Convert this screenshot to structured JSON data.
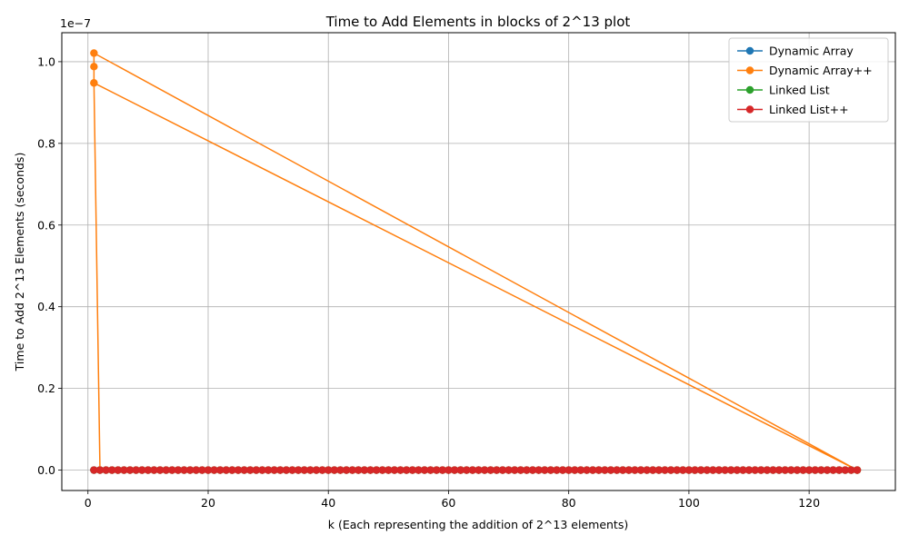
{
  "chart_data": {
    "type": "line",
    "title": "Time to Add Elements in blocks of 2^13 plot",
    "xlabel": "k (Each representing the addition of 2^13 elements)",
    "ylabel": "Time to Add 2^13 Elements (seconds)",
    "y_offset_label": "1e−7",
    "y_scale": 1e-07,
    "xlim": [
      -4.35,
      134.35
    ],
    "ylim": [
      -5e-09,
      1.071e-07
    ],
    "x_ticks": [
      0,
      20,
      40,
      60,
      80,
      100,
      120
    ],
    "y_ticks": [
      0.0,
      2e-08,
      4e-08,
      6e-08,
      8e-08,
      1e-07
    ],
    "y_tick_labels": [
      "0.0",
      "0.2",
      "0.4",
      "0.6",
      "0.8",
      "1.0"
    ],
    "grid": true,
    "legend_position": "top-right",
    "x_range": {
      "start": 1,
      "end": 128
    },
    "series": [
      {
        "name": "Dynamic Array",
        "color": "#1f77b4",
        "pattern": "zeros",
        "values": []
      },
      {
        "name": "Dynamic Array++",
        "color": "#ff7f0e",
        "pattern": "explicit",
        "values": [
          [
            1,
            9.48e-08
          ],
          [
            1,
            9.88e-08
          ],
          [
            1,
            1.021e-07
          ],
          [
            128,
            0
          ],
          [
            1,
            9.48e-08
          ],
          [
            2,
            0
          ]
        ]
      },
      {
        "name": "Linked List",
        "color": "#2ca02c",
        "pattern": "zeros",
        "values": []
      },
      {
        "name": "Linked List++",
        "color": "#d62728",
        "pattern": "zeros",
        "values": []
      }
    ]
  }
}
